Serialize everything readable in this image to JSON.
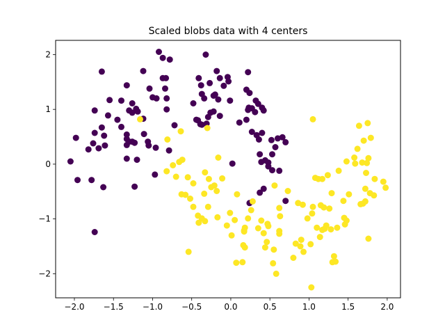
{
  "chart_data": {
    "type": "scatter",
    "title": "Scaled blobs data with 4 centers",
    "xlabel": "",
    "ylabel": "",
    "xlim": [
      -2.24,
      2.17
    ],
    "ylim": [
      -2.44,
      2.26
    ],
    "x_ticks": [
      -2.0,
      -1.5,
      -1.0,
      -0.5,
      0.0,
      0.5,
      1.0,
      1.5,
      2.0
    ],
    "x_tick_labels": [
      "−2.0",
      "−1.5",
      "−1.0",
      "−0.5",
      "0.0",
      "0.5",
      "1.0",
      "1.5",
      "2.0"
    ],
    "y_ticks": [
      -2,
      -1,
      0,
      1,
      2
    ],
    "y_tick_labels": [
      "−2",
      "−1",
      "0",
      "1",
      "2"
    ],
    "grid": false,
    "series": [
      {
        "color": "#440154",
        "points": [
          [
            -1.65,
            1.69
          ],
          [
            -1.55,
            1.17
          ],
          [
            -1.4,
            1.16
          ],
          [
            -1.12,
            1.7
          ],
          [
            -1.04,
            1.38
          ],
          [
            -0.92,
            2.05
          ],
          [
            -0.87,
            1.94
          ],
          [
            -0.78,
            1.91
          ],
          [
            -0.32,
            2.0
          ],
          [
            -1.33,
            1.44
          ],
          [
            -1.26,
            1.11
          ],
          [
            -1.21,
            1.01
          ],
          [
            -1.26,
            0.94
          ],
          [
            -1.3,
            0.98
          ],
          [
            -1.19,
            0.96
          ],
          [
            -1.12,
            0.83
          ],
          [
            -1.0,
            1.22
          ],
          [
            -0.95,
            1.2
          ],
          [
            -0.87,
            1.57
          ],
          [
            -0.83,
            1.57
          ],
          [
            -0.84,
            1.38
          ],
          [
            -0.82,
            1.2
          ],
          [
            -0.82,
            1.0
          ],
          [
            -1.74,
            0.98
          ],
          [
            -1.57,
            0.89
          ],
          [
            -1.65,
            0.67
          ],
          [
            -1.62,
            0.52
          ],
          [
            -1.45,
            0.81
          ],
          [
            -1.4,
            0.68
          ],
          [
            -1.33,
            0.54
          ],
          [
            -1.33,
            0.46
          ],
          [
            -1.33,
            0.35
          ],
          [
            -1.26,
            0.41
          ],
          [
            -1.3,
            0.41
          ],
          [
            -1.11,
            0.55
          ],
          [
            -1.06,
            0.41
          ],
          [
            -1.05,
            0.34
          ],
          [
            -0.96,
            0.3
          ],
          [
            -1.74,
            0.57
          ],
          [
            -1.76,
            0.38
          ],
          [
            -1.69,
            0.29
          ],
          [
            -1.61,
            0.34
          ],
          [
            -1.82,
            0.27
          ],
          [
            -1.98,
            0.48
          ],
          [
            -2.05,
            0.05
          ],
          [
            -1.96,
            -0.29
          ],
          [
            -1.78,
            -0.29
          ],
          [
            -1.63,
            -0.42
          ],
          [
            -1.23,
            0.39
          ],
          [
            -1.33,
            0.1
          ],
          [
            -1.2,
            0.08
          ],
          [
            -1.23,
            -0.41
          ],
          [
            -1.74,
            -1.24
          ],
          [
            -0.41,
            1.57
          ],
          [
            -0.38,
            1.44
          ],
          [
            -0.27,
            1.48
          ],
          [
            -0.2,
            1.27
          ],
          [
            -0.14,
            1.57
          ],
          [
            -0.09,
            1.43
          ],
          [
            -0.03,
            1.51
          ],
          [
            -0.04,
            1.59
          ],
          [
            -0.18,
            1.7
          ],
          [
            -0.48,
            1.11
          ],
          [
            -0.37,
            1.28
          ],
          [
            -0.34,
            1.2
          ],
          [
            -0.22,
            1.25
          ],
          [
            -0.16,
            1.18
          ],
          [
            -0.26,
            0.94
          ],
          [
            -0.44,
            0.81
          ],
          [
            -0.42,
            0.8
          ],
          [
            -0.37,
            0.72
          ],
          [
            -0.39,
            0.73
          ],
          [
            -0.29,
            0.86
          ],
          [
            -0.31,
            0.74
          ],
          [
            -0.22,
            0.96
          ],
          [
            -0.14,
            0.88
          ],
          [
            -0.01,
            1.16
          ],
          [
            0.2,
            1.36
          ],
          [
            0.24,
            1.3
          ],
          [
            0.23,
            1.03
          ],
          [
            0.32,
            1.16
          ],
          [
            0.35,
            1.1
          ],
          [
            0.31,
            0.95
          ],
          [
            0.4,
            1.03
          ],
          [
            0.42,
            0.98
          ],
          [
            0.22,
            0.99
          ],
          [
            0.27,
            1.02
          ],
          [
            0.22,
            1.68
          ],
          [
            0.11,
            0.76
          ],
          [
            0.2,
            0.81
          ],
          [
            0.36,
            0.45
          ],
          [
            0.52,
            0.44
          ],
          [
            0.6,
            0.47
          ],
          [
            0.66,
            0.49
          ],
          [
            0.7,
            0.4
          ],
          [
            0.57,
            0.31
          ],
          [
            0.53,
            0.18
          ],
          [
            0.37,
            0.18
          ],
          [
            0.44,
            0.07
          ],
          [
            0.39,
            0.04
          ],
          [
            0.48,
            0.03
          ],
          [
            0.48,
            -0.04
          ],
          [
            0.53,
            -0.11
          ],
          [
            0.62,
            -0.12
          ],
          [
            0.37,
            -0.52
          ],
          [
            0.42,
            -0.45
          ],
          [
            0.7,
            -0.67
          ],
          [
            0.24,
            -0.71
          ],
          [
            0.27,
            0.59
          ],
          [
            0.33,
            0.53
          ],
          [
            0.4,
            0.57
          ],
          [
            0.02,
            0.01
          ],
          [
            -0.72,
            0.71
          ],
          [
            -0.79,
            0.25
          ],
          [
            -0.97,
            -0.19
          ]
        ]
      },
      {
        "color": "#fde725",
        "points": [
          [
            -1.16,
            0.82
          ],
          [
            -0.81,
            0.45
          ],
          [
            -0.64,
            0.6
          ],
          [
            -0.3,
            0.66
          ],
          [
            -0.82,
            -0.13
          ],
          [
            -0.74,
            -0.02
          ],
          [
            -0.66,
            0.04
          ],
          [
            -0.62,
            0.08
          ],
          [
            -0.7,
            -0.23
          ],
          [
            -0.55,
            -0.24
          ],
          [
            -0.48,
            -0.35
          ],
          [
            -0.33,
            -0.15
          ],
          [
            -0.34,
            -0.54
          ],
          [
            -0.28,
            -0.27
          ],
          [
            -0.25,
            -0.42
          ],
          [
            -0.21,
            -0.39
          ],
          [
            -0.18,
            -0.49
          ],
          [
            -0.11,
            -0.26
          ],
          [
            -0.16,
            0.12
          ],
          [
            -0.58,
            -0.56
          ],
          [
            -0.63,
            -0.55
          ],
          [
            -0.52,
            -0.63
          ],
          [
            -0.48,
            -0.78
          ],
          [
            -0.42,
            -0.94
          ],
          [
            -0.37,
            -0.99
          ],
          [
            -0.33,
            -1.04
          ],
          [
            -0.41,
            -1.07
          ],
          [
            -0.29,
            -0.78
          ],
          [
            -0.17,
            -0.97
          ],
          [
            -0.54,
            -1.6
          ],
          [
            -0.01,
            -0.89
          ],
          [
            0.05,
            -1.02
          ],
          [
            0.18,
            -1.16
          ],
          [
            0.17,
            -1.23
          ],
          [
            0.22,
            -0.99
          ],
          [
            0.26,
            -0.84
          ],
          [
            0.28,
            -0.68
          ],
          [
            0.39,
            -1.03
          ],
          [
            0.42,
            -1.26
          ],
          [
            0.47,
            -1.09
          ],
          [
            0.48,
            -1.13
          ],
          [
            0.55,
            -1.56
          ],
          [
            0.54,
            -1.81
          ],
          [
            0.58,
            -2.0
          ],
          [
            0.46,
            -1.42
          ],
          [
            0.44,
            -1.52
          ],
          [
            0.62,
            -1.22
          ],
          [
            0.62,
            -1.27
          ],
          [
            0.62,
            -0.8
          ],
          [
            0.73,
            -0.49
          ],
          [
            0.8,
            -1.71
          ],
          [
            0.83,
            -1.45
          ],
          [
            0.9,
            -1.38
          ],
          [
            0.86,
            -0.71
          ],
          [
            0.92,
            -0.74
          ],
          [
            0.98,
            -0.99
          ],
          [
            1.05,
            -0.78
          ],
          [
            1.04,
            -0.9
          ],
          [
            0.89,
            -1.5
          ],
          [
            1.02,
            -1.46
          ],
          [
            1.03,
            -2.25
          ],
          [
            1.1,
            -1.16
          ],
          [
            1.17,
            -1.2
          ],
          [
            1.2,
            -1.18
          ],
          [
            1.22,
            -1.12
          ],
          [
            1.14,
            -1.33
          ],
          [
            1.32,
            -1.68
          ],
          [
            1.3,
            -1.79
          ],
          [
            1.34,
            -1.78
          ],
          [
            1.15,
            -0.75
          ],
          [
            1.19,
            -0.79
          ],
          [
            1.26,
            -0.81
          ],
          [
            1.05,
            0.82
          ],
          [
            1.08,
            -0.25
          ],
          [
            1.12,
            -0.27
          ],
          [
            1.17,
            -0.27
          ],
          [
            1.24,
            -0.2
          ],
          [
            1.38,
            -0.12
          ],
          [
            1.29,
            -0.53
          ],
          [
            1.44,
            -0.67
          ],
          [
            1.45,
            -0.98
          ],
          [
            1.46,
            -1.1
          ],
          [
            1.48,
            -1.03
          ],
          [
            1.51,
            -0.55
          ],
          [
            1.48,
            0.05
          ],
          [
            1.59,
            0.01
          ],
          [
            1.62,
            0.28
          ],
          [
            1.64,
            0.7
          ],
          [
            1.68,
            0.03
          ],
          [
            1.69,
            -0.72
          ],
          [
            1.72,
            -0.68
          ],
          [
            1.74,
            0.02
          ],
          [
            1.75,
            0.75
          ],
          [
            1.79,
            0.48
          ],
          [
            1.7,
            0.43
          ],
          [
            1.72,
            -0.45
          ],
          [
            1.78,
            -0.53
          ],
          [
            1.84,
            -0.27
          ],
          [
            1.98,
            -0.43
          ],
          [
            1.76,
            -1.36
          ],
          [
            0.18,
            -1.52
          ],
          [
            0.16,
            -1.48
          ],
          [
            0.07,
            -1.8
          ],
          [
            0.15,
            -1.79
          ],
          [
            0.01,
            -1.3
          ],
          [
            0.08,
            -0.55
          ],
          [
            0.35,
            -1.17
          ],
          [
            0.17,
            -1.21
          ],
          [
            1.36,
            -1.16
          ],
          [
            1.28,
            -1.19
          ],
          [
            1.66,
            -0.73
          ],
          [
            1.76,
            0.11
          ],
          [
            1.58,
            0.12
          ],
          [
            1.73,
            -0.16
          ],
          [
            1.83,
            -0.57
          ],
          [
            1.95,
            -0.32
          ],
          [
            0.93,
            -1.6
          ],
          [
            0.63,
            -0.95
          ],
          [
            0.56,
            -0.39
          ],
          [
            -0.05,
            -1.12
          ]
        ]
      }
    ]
  }
}
